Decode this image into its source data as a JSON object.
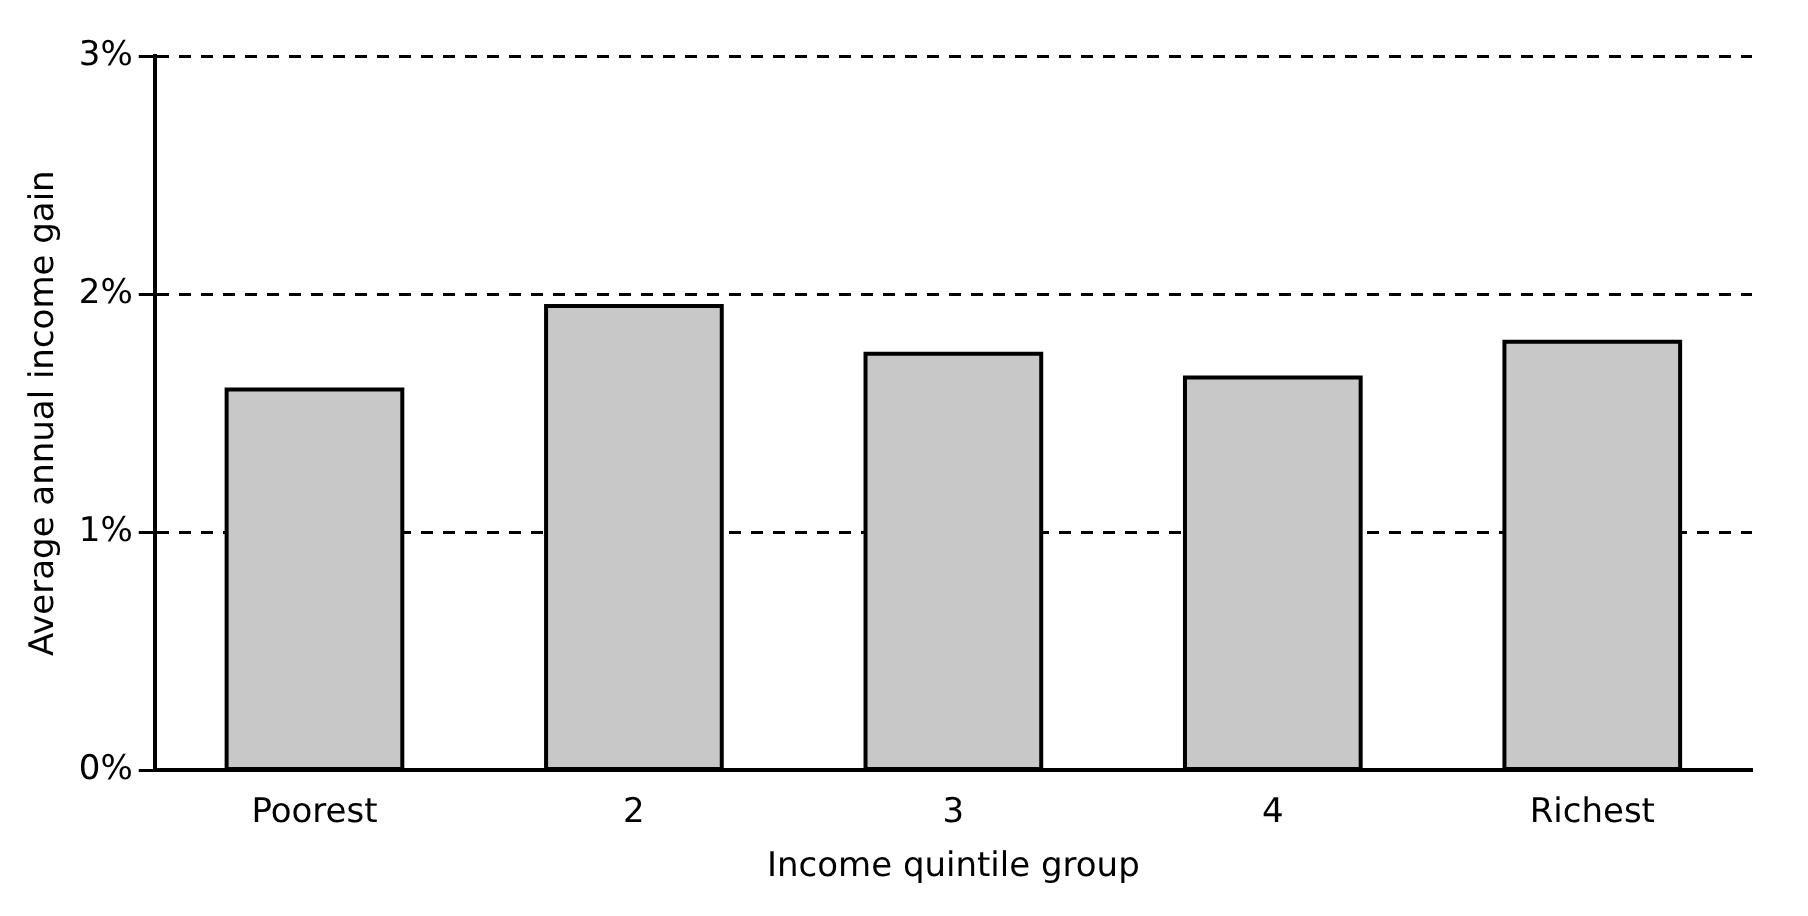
{
  "chart_data": {
    "type": "bar",
    "xlabel": "Income quintile group",
    "ylabel": "Average annual income gain",
    "categories": [
      "Poorest",
      "2",
      "3",
      "4",
      "Richest"
    ],
    "values": [
      1.6,
      1.95,
      1.75,
      1.65,
      1.8
    ],
    "color": "#c8c8c8",
    "ylim": [
      0,
      3
    ],
    "yticks": [
      {
        "value": 0,
        "label": "0%"
      },
      {
        "value": 1,
        "label": "1%"
      },
      {
        "value": 2,
        "label": "2%"
      },
      {
        "value": 3,
        "label": "3%"
      }
    ],
    "grid": "y",
    "line_style": "dashed"
  }
}
